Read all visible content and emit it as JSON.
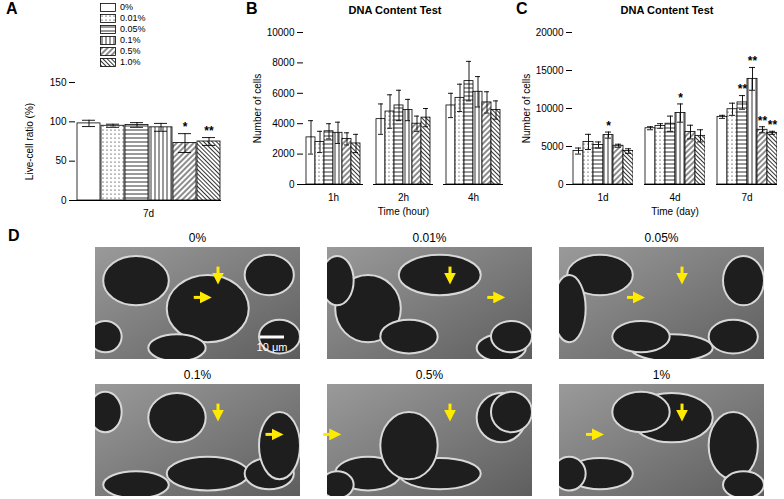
{
  "chart_data": [
    {
      "panel": "A",
      "type": "bar",
      "y_label": "Live-cell ratio (%)",
      "categories": [
        "7d"
      ],
      "ylim": [
        0,
        150
      ],
      "yticks": [
        0,
        50,
        100,
        150
      ],
      "grid": false,
      "legend": "top-left",
      "series": [
        {
          "name": "0%",
          "color": "#000000",
          "values": [
            98
          ],
          "errors": [
            4
          ]
        },
        {
          "name": "0.01%",
          "color": "#000000",
          "values": [
            95
          ],
          "errors": [
            2
          ]
        },
        {
          "name": "0.05%",
          "color": "#000000",
          "values": [
            96
          ],
          "errors": [
            3
          ]
        },
        {
          "name": "0.1%",
          "color": "#000000",
          "values": [
            93
          ],
          "errors": [
            5
          ]
        },
        {
          "name": "0.5%",
          "color": "#000000",
          "values": [
            73
          ],
          "errors": [
            12
          ],
          "significance": [
            "*"
          ]
        },
        {
          "name": "1.0%",
          "color": "#000000",
          "values": [
            75
          ],
          "errors": [
            5
          ],
          "significance": [
            "**"
          ]
        }
      ]
    },
    {
      "panel": "B",
      "type": "bar",
      "title": "DNA Content Test",
      "y_label": "Number of cells",
      "x_label": "Time (hour)",
      "categories": [
        "1h",
        "2h",
        "4h"
      ],
      "ylim": [
        0,
        10000
      ],
      "yticks": [
        0,
        2000,
        4000,
        6000,
        8000,
        10000
      ],
      "grid": false,
      "series": [
        {
          "name": "0%",
          "color": "#000000",
          "values": [
            3100,
            4300,
            5200
          ],
          "errors": [
            1100,
            1000,
            800
          ]
        },
        {
          "name": "0.01%",
          "color": "#000000",
          "values": [
            2800,
            4800,
            5700
          ],
          "errors": [
            700,
            1100,
            900
          ]
        },
        {
          "name": "0.05%",
          "color": "#000000",
          "values": [
            3500,
            5200,
            6800
          ],
          "errors": [
            500,
            1000,
            1300
          ]
        },
        {
          "name": "0.1%",
          "color": "#000000",
          "values": [
            3400,
            4900,
            6100
          ],
          "errors": [
            700,
            700,
            1000
          ]
        },
        {
          "name": "0.5%",
          "color": "#000000",
          "values": [
            3000,
            4000,
            5400
          ],
          "errors": [
            400,
            500,
            700
          ]
        },
        {
          "name": "1.0%",
          "color": "#000000",
          "values": [
            2700,
            4400,
            4900
          ],
          "errors": [
            600,
            600,
            600
          ]
        }
      ]
    },
    {
      "panel": "C",
      "type": "bar",
      "title": "DNA Content Test",
      "y_label": "Number of cells",
      "x_label": "Time (day)",
      "categories": [
        "1d",
        "4d",
        "7d"
      ],
      "ylim": [
        0,
        20000
      ],
      "yticks": [
        0,
        5000,
        10000,
        15000,
        20000
      ],
      "grid": false,
      "series": [
        {
          "name": "0%",
          "color": "#000000",
          "values": [
            4400,
            7400,
            8900
          ],
          "errors": [
            400,
            200,
            200
          ]
        },
        {
          "name": "0.01%",
          "color": "#000000",
          "values": [
            5600,
            7700,
            9900
          ],
          "errors": [
            1000,
            300,
            800
          ]
        },
        {
          "name": "0.05%",
          "color": "#000000",
          "values": [
            5200,
            8000,
            10800
          ],
          "errors": [
            400,
            1000,
            900
          ],
          "significance": [
            null,
            null,
            "**"
          ]
        },
        {
          "name": "0.1%",
          "color": "#000000",
          "values": [
            6500,
            9400,
            13900
          ],
          "errors": [
            400,
            1200,
            1500
          ],
          "significance": [
            "*",
            "*",
            "**"
          ]
        },
        {
          "name": "0.5%",
          "color": "#000000",
          "values": [
            5100,
            6900,
            7200
          ],
          "errors": [
            200,
            900,
            400
          ],
          "significance": [
            null,
            null,
            "**"
          ]
        },
        {
          "name": "1.0%",
          "color": "#000000",
          "values": [
            4400,
            6400,
            6800
          ],
          "errors": [
            300,
            800,
            200
          ],
          "significance": [
            null,
            null,
            "**"
          ]
        }
      ]
    }
  ],
  "image_panel": {
    "panel": "D",
    "images": [
      "0%",
      "0.01%",
      "0.05%",
      "0.1%",
      "0.5%",
      "1%"
    ],
    "scale_bar": "10 μm"
  }
}
